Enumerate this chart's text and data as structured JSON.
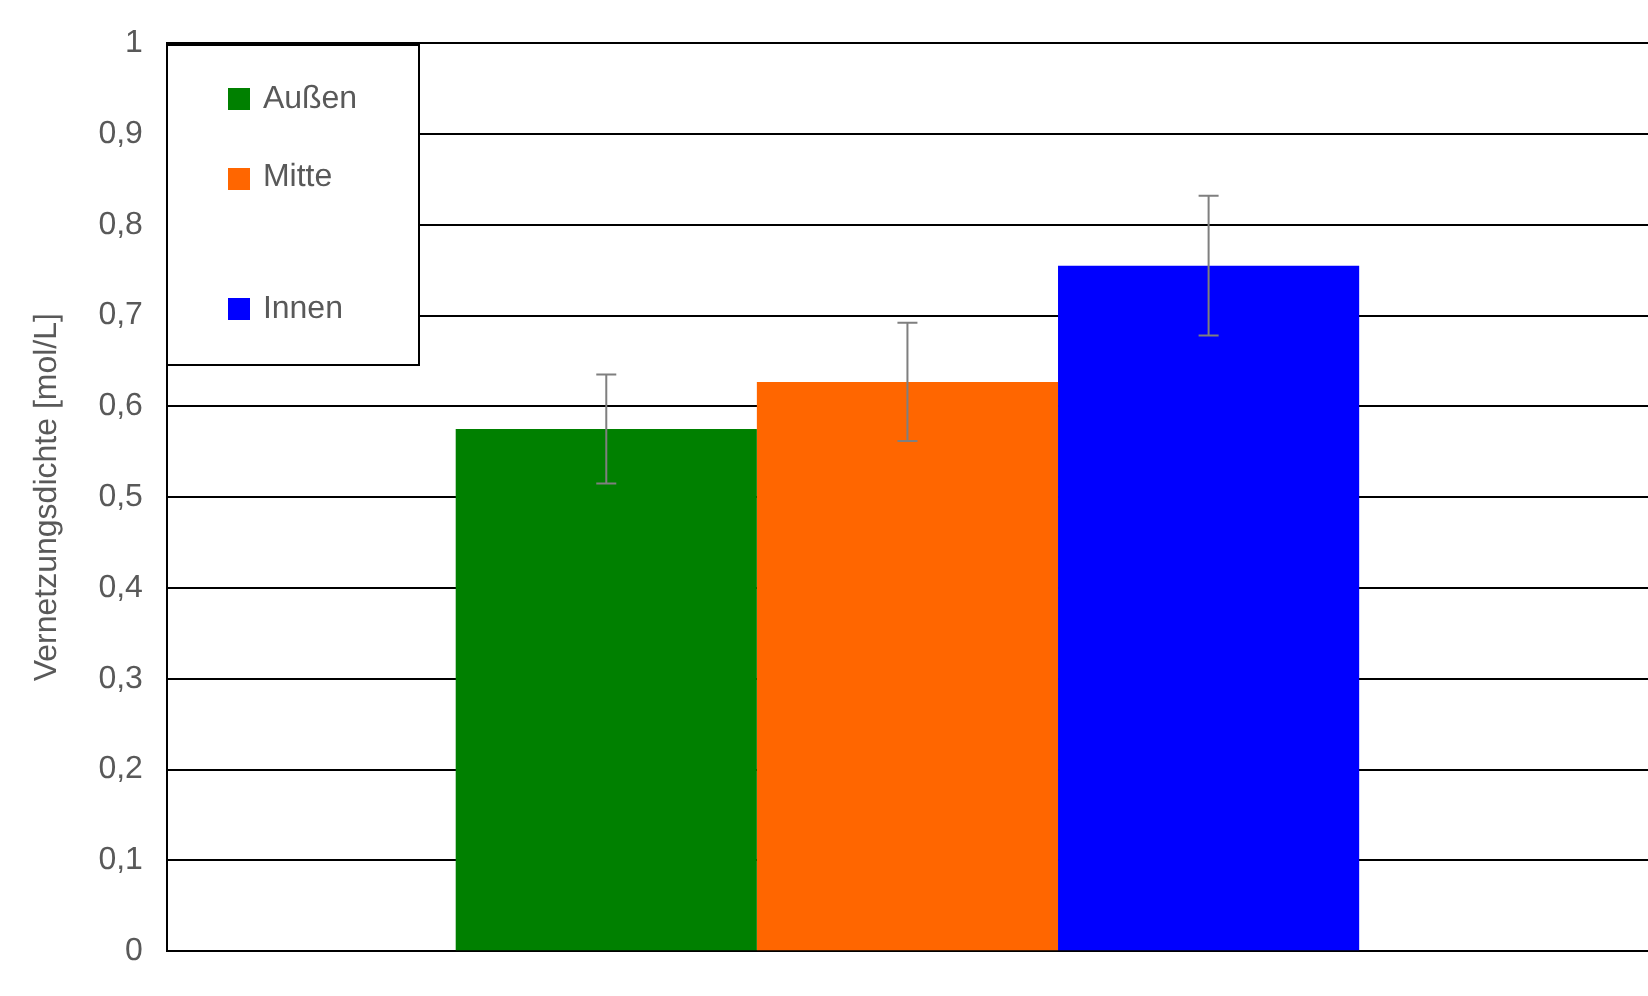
{
  "chart_data": {
    "type": "bar",
    "ylabel": "Vernetzungsdichte [mol/L]",
    "categories": [
      null
    ],
    "series": [
      {
        "name": "Außen",
        "color": "#008000",
        "values": [
          0.575
        ],
        "errors": [
          0.06
        ]
      },
      {
        "name": "Mitte",
        "color": "#ff6600",
        "values": [
          0.627
        ],
        "errors": [
          0.065
        ]
      },
      {
        "name": "Innen",
        "color": "#0000ff",
        "values": [
          0.755
        ],
        "errors": [
          0.077
        ]
      }
    ],
    "ylim": [
      0,
      1
    ],
    "yticks": [
      0,
      {
        "value": 0.1,
        "label": "0,1"
      },
      {
        "value": 0.2,
        "label": "0,2"
      },
      {
        "value": 0.3,
        "label": "0,3"
      },
      {
        "value": 0.4,
        "label": "0,4"
      },
      {
        "value": 0.5,
        "label": "0,5"
      },
      {
        "value": 0.6,
        "label": "0,6"
      },
      {
        "value": 0.7,
        "label": "0,7"
      },
      {
        "value": 0.8,
        "label": "0,8"
      },
      {
        "value": 0.9,
        "label": "0,9"
      },
      1
    ],
    "grid": "y",
    "legend": "top left"
  }
}
